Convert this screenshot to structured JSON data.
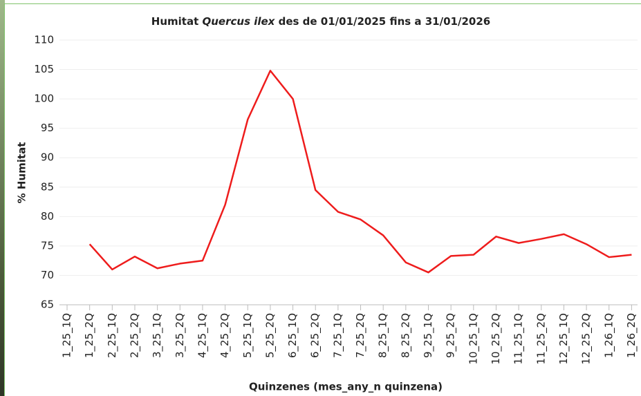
{
  "chart_data": {
    "type": "line",
    "title": [
      "Humitat ",
      "Quercus ilex",
      " des de 01/01/2025 fins a 31/01/2026"
    ],
    "x_label": "Quinzenes (mes_any_n quinzena)",
    "y_label": "% Humitat",
    "categories": [
      "1_25_1Q",
      "1_25_2Q",
      "2_25_1Q",
      "2_25_2Q",
      "3_25_1Q",
      "3_25_2Q",
      "4_25_1Q",
      "4_25_2Q",
      "5_25_1Q",
      "5_25_2Q",
      "6_25_1Q",
      "6_25_2Q",
      "7_25_1Q",
      "7_25_2Q",
      "8_25_1Q",
      "8_25_2Q",
      "9_25_1Q",
      "9_25_2Q",
      "10_25_1Q",
      "10_25_2Q",
      "11_25_1Q",
      "11_25_2Q",
      "12_25_1Q",
      "12_25_2Q",
      "1_26_1Q",
      "1_26_2Q"
    ],
    "series": [
      {
        "color": "#ee1c1c",
        "values": [
          null,
          75.3,
          71,
          73.2,
          71.2,
          72,
          72.5,
          82,
          96.5,
          104.8,
          100,
          84.5,
          80.8,
          79.5,
          76.8,
          72.2,
          70.5,
          73.3,
          73.5,
          76.6,
          75.5,
          76.2,
          77,
          75.3,
          73.1,
          73.5
        ]
      }
    ],
    "ylim": [
      65,
      110
    ],
    "yticks": [
      65,
      70,
      75,
      80,
      85,
      90,
      95,
      100,
      105,
      110
    ],
    "grid": true
  }
}
